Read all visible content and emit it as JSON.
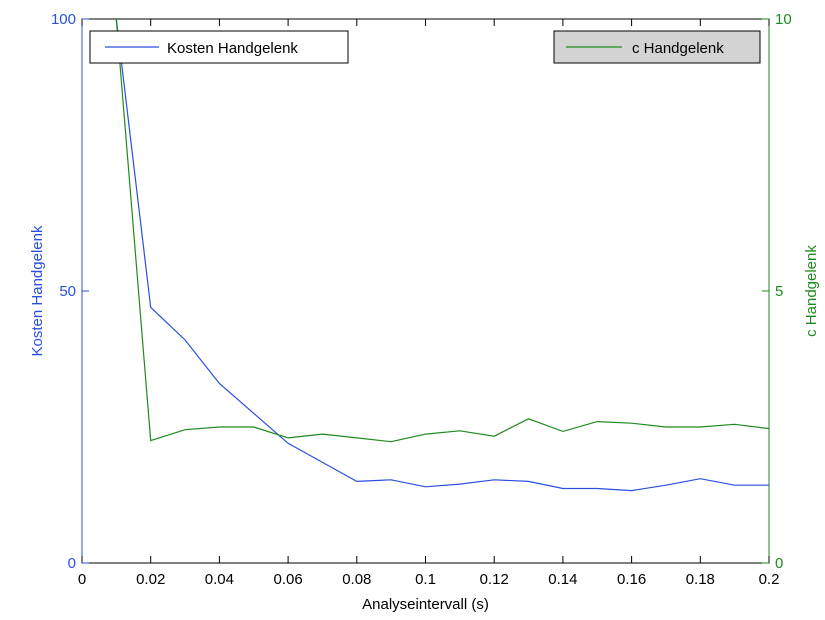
{
  "chart_data": {
    "type": "line",
    "xlabel": "Analyseintervall (s)",
    "ylabel_left": "Kosten Handgelenk",
    "ylabel_right": "c Handgelenk",
    "xlim": [
      0,
      0.2
    ],
    "ylim_left": [
      0,
      100
    ],
    "ylim_right": [
      0,
      10
    ],
    "x_ticks": [
      "0",
      "0.02",
      "0.04",
      "0.06",
      "0.08",
      "0.1",
      "0.12",
      "0.14",
      "0.16",
      "0.18",
      "0.2"
    ],
    "y_left_ticks": [
      "0",
      "50",
      "100"
    ],
    "y_right_ticks": [
      "0",
      "5",
      "10"
    ],
    "grid": false,
    "series": [
      {
        "name": "Kosten Handgelenk",
        "axis": "left",
        "color": "#2a4fe0",
        "x": [
          0.01,
          0.02,
          0.03,
          0.04,
          0.05,
          0.06,
          0.07,
          0.08,
          0.09,
          0.1,
          0.11,
          0.12,
          0.13,
          0.14,
          0.15,
          0.16,
          0.17,
          0.18,
          0.19,
          0.2
        ],
        "y": [
          100,
          47,
          41,
          33,
          27.5,
          22,
          18.5,
          15,
          15.3,
          14,
          14.5,
          15.3,
          15,
          13.7,
          13.7,
          13.3,
          14.3,
          15.5,
          14.3,
          14.3
        ]
      },
      {
        "name": "c Handgelenk",
        "axis": "right",
        "color": "#1f8a1f",
        "x": [
          0.01,
          0.02,
          0.03,
          0.04,
          0.05,
          0.06,
          0.07,
          0.08,
          0.09,
          0.1,
          0.11,
          0.12,
          0.13,
          0.14,
          0.15,
          0.16,
          0.17,
          0.18,
          0.19,
          0.2
        ],
        "y": [
          10,
          2.25,
          2.45,
          2.5,
          2.5,
          2.3,
          2.37,
          2.3,
          2.23,
          2.37,
          2.43,
          2.33,
          2.65,
          2.42,
          2.6,
          2.57,
          2.5,
          2.5,
          2.55,
          2.47
        ]
      }
    ],
    "legends": [
      {
        "label": "Kosten Handgelenk",
        "position": "top-left",
        "color": "#2a4fe0",
        "background": "#ffffff"
      },
      {
        "label": "c Handgelenk",
        "position": "top-right",
        "color": "#1f8a1f",
        "background": "#d3d3d3"
      }
    ]
  },
  "colors": {
    "left_axis": "#2a4fe0",
    "right_axis": "#1f8a1f",
    "frame": "#000000"
  }
}
